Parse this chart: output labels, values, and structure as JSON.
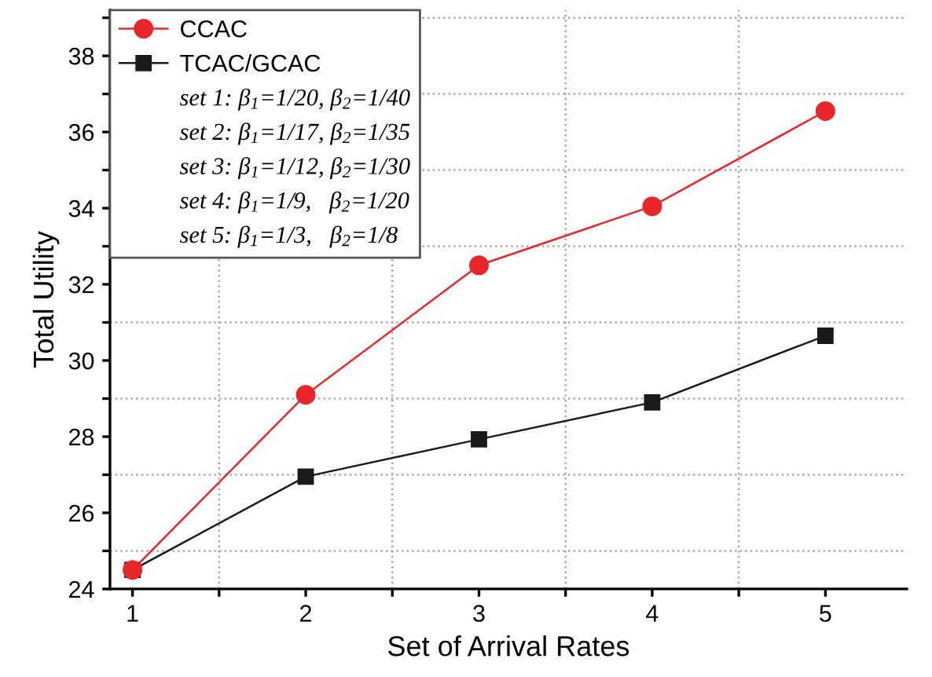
{
  "chart_data": {
    "type": "line",
    "xlabel": "Set of Arrival Rates",
    "ylabel": "Total Utility",
    "x": [
      1,
      2,
      3,
      4,
      5
    ],
    "series": [
      {
        "name": "CCAC",
        "color": "#e8262b",
        "marker": "circle",
        "values": [
          24.5,
          29.1,
          32.5,
          34.05,
          36.55
        ]
      },
      {
        "name": "TCAC/GCAC",
        "color": "#1a1a1a",
        "marker": "square",
        "values": [
          24.5,
          26.95,
          27.93,
          28.9,
          30.65
        ]
      }
    ],
    "xlim": [
      0.87,
      5.47
    ],
    "ylim": [
      24,
      39.2
    ],
    "xticks": [
      1,
      {
        "value": 1.5,
        "label": null
      },
      2,
      {
        "value": 2.5,
        "label": null
      },
      3,
      {
        "value": 3.5,
        "label": null
      },
      4,
      {
        "value": 4.5,
        "label": null
      },
      5
    ],
    "yticks": [
      24,
      {
        "value": 25,
        "label": null
      },
      26,
      {
        "value": 27,
        "label": null
      },
      28,
      {
        "value": 29,
        "label": null
      },
      30,
      {
        "value": 31,
        "label": null
      },
      32,
      {
        "value": 33,
        "label": null
      },
      34,
      {
        "value": 35,
        "label": null
      },
      36,
      {
        "value": 37,
        "label": null
      },
      38,
      {
        "value": 39,
        "label": null
      }
    ],
    "grid": true,
    "legend": "top left",
    "line_style": "solid",
    "annotations": [
      "set 1: β$_{1}$=1/20, β$_{2}$=1/40",
      "set 2: β$_{1}$=1/17, β$_{2}$=1/35",
      "set 3: β$_{1}$=1/12, β$_{2}$=1/30",
      "set 4: β$_{1}$=1/9,   β$_{2}$=1/20",
      "set 5: β$_{1}$=1/3,   β$_{2}$=1/8"
    ]
  }
}
